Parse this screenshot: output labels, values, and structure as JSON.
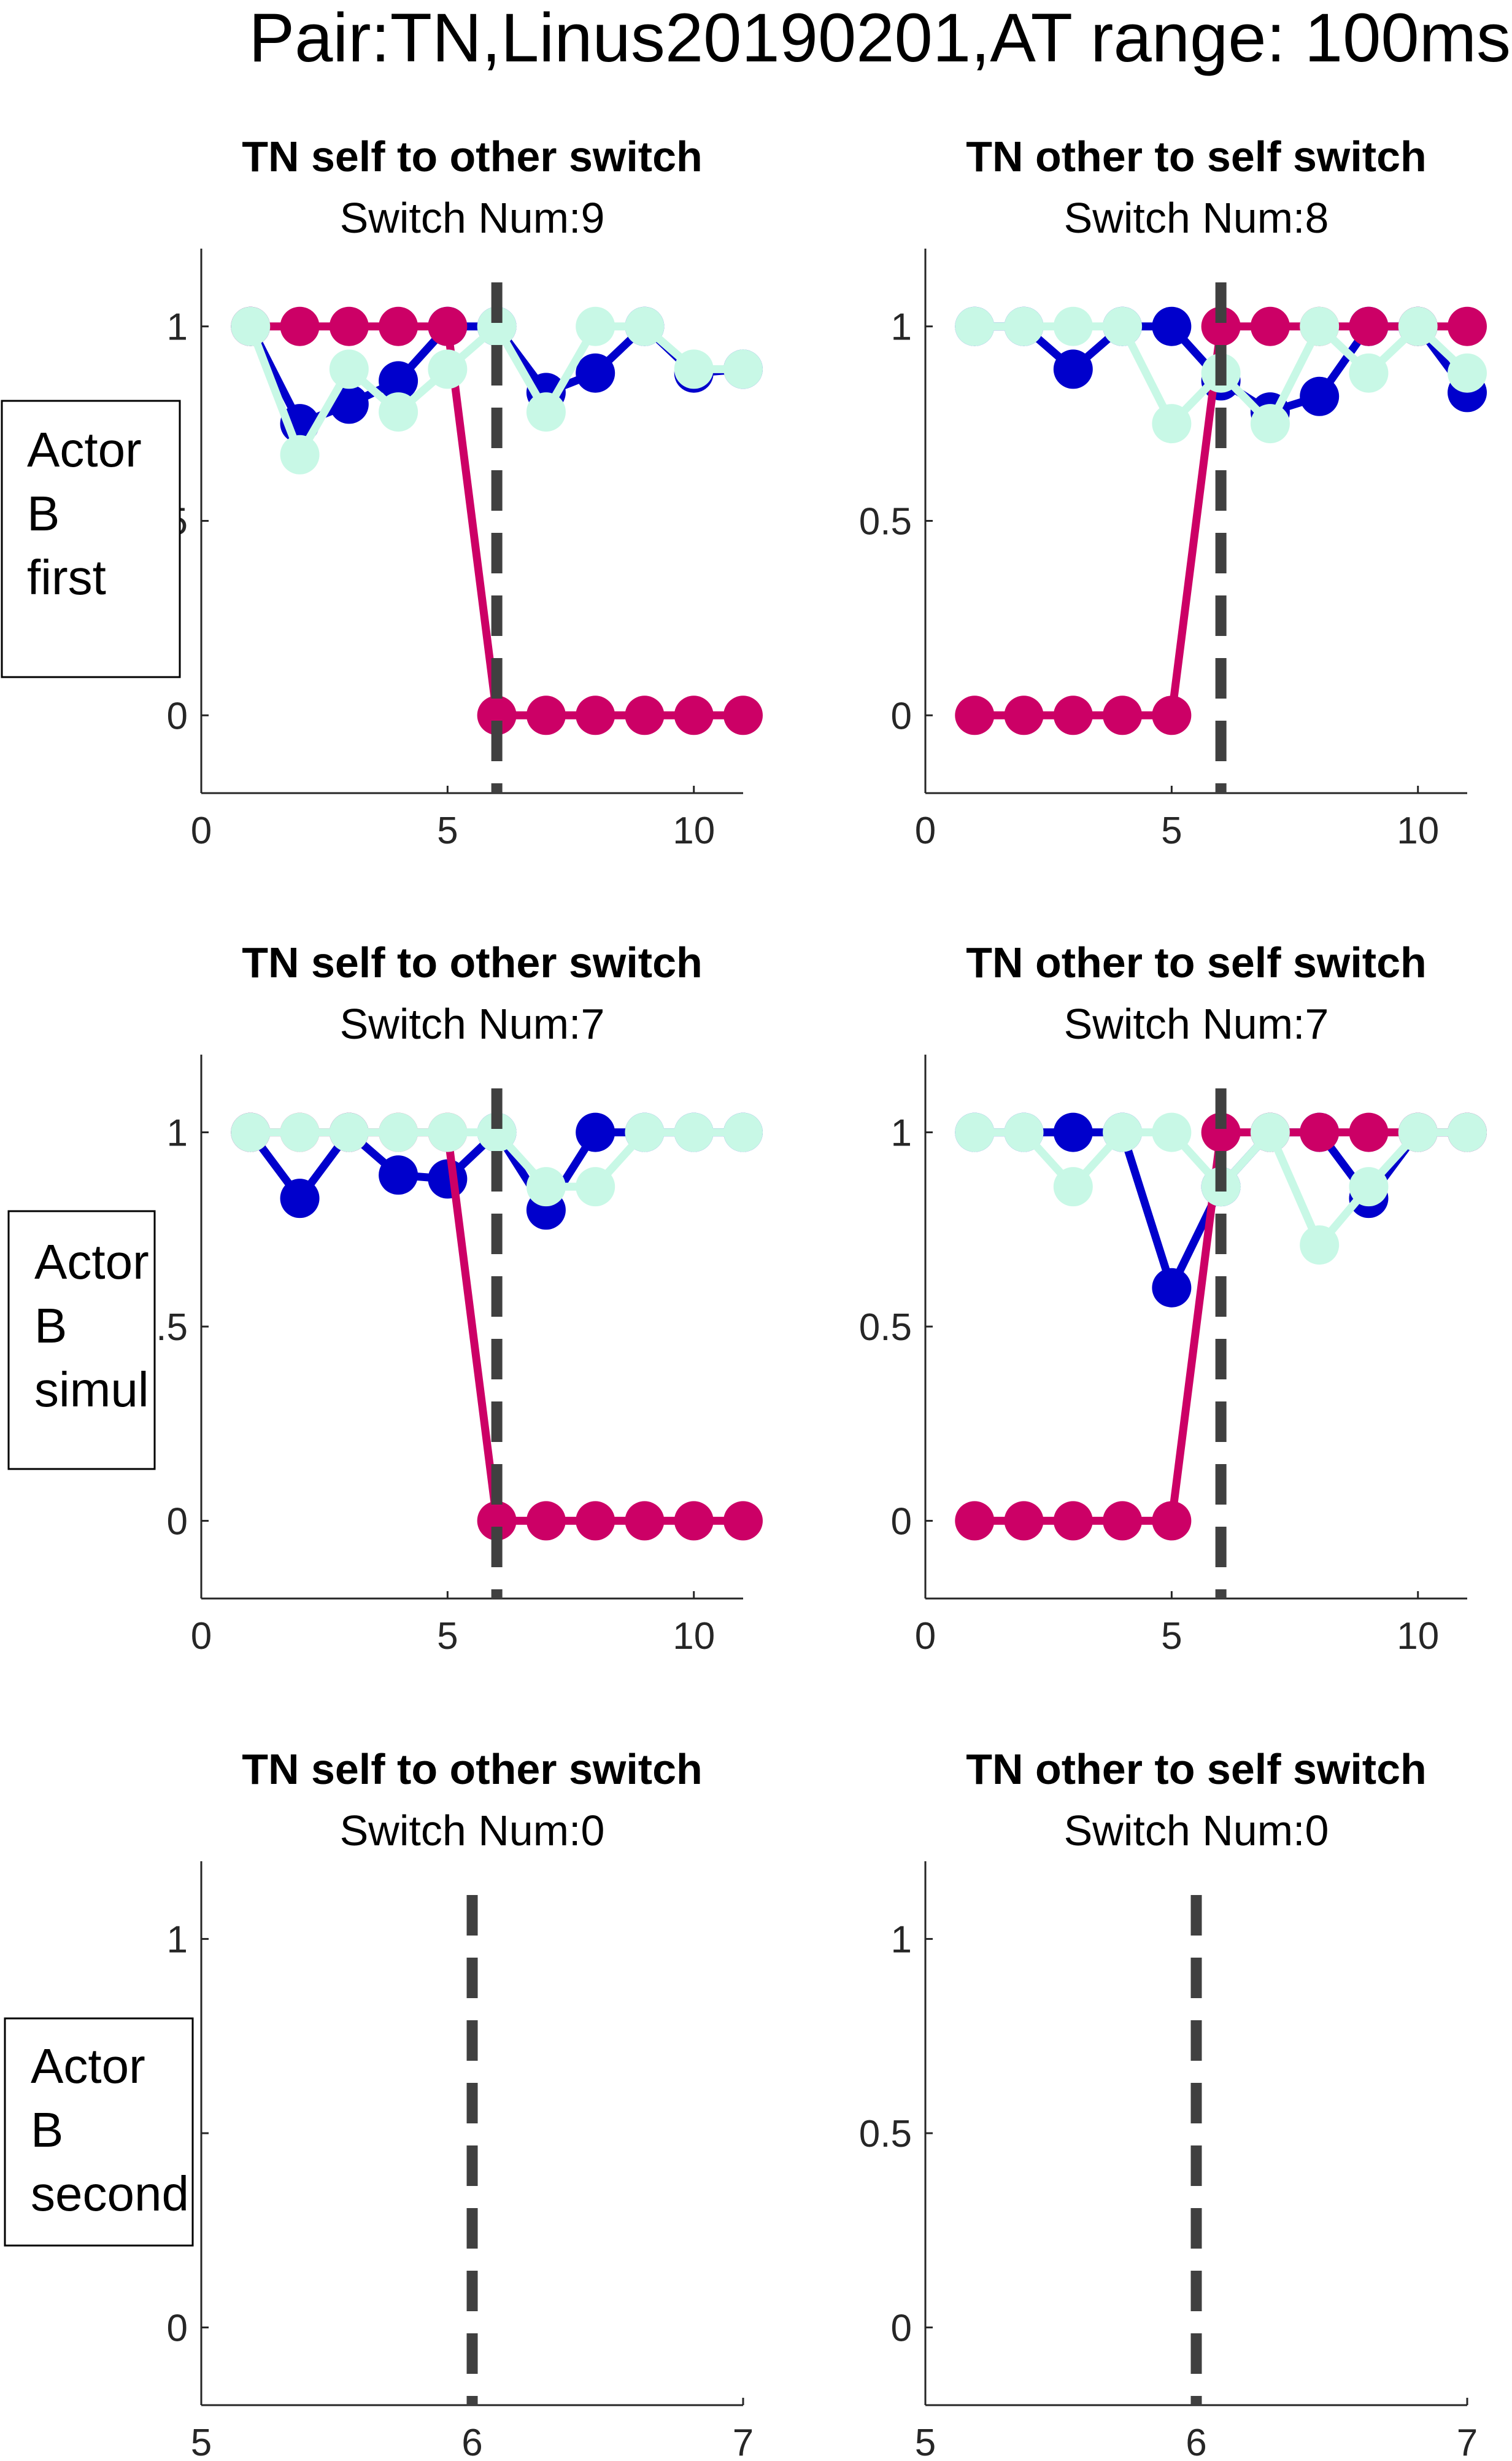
{
  "title": "Pair:TN,Linus20190201,AT range: 100ms",
  "colors": {
    "series_a": "#0000CC",
    "series_b": "#CC0066",
    "series_c": "#C8F8E6",
    "switch_line": "#404040"
  },
  "chart_data": [
    {
      "type": "line",
      "title": "TN self to other switch",
      "subtitle": "Switch Num:9",
      "row_label": [
        "Actor",
        "B",
        "first"
      ],
      "xlim": [
        0,
        11
      ],
      "ylim": [
        -0.2,
        1.2
      ],
      "xticks": [
        "0",
        "5",
        "10"
      ],
      "yticks": [
        "0",
        "0.5",
        "1"
      ],
      "switch_x": 6,
      "x": [
        1,
        2,
        3,
        4,
        5,
        6,
        7,
        8,
        9,
        10,
        11
      ],
      "series": [
        {
          "values": [
            1,
            0.75,
            0.8,
            0.86,
            1,
            1,
            0.83,
            0.88,
            1,
            0.88,
            0.89
          ],
          "color": "#0000CC"
        },
        {
          "values": [
            1,
            1,
            1,
            1,
            1,
            0,
            0,
            0,
            0,
            0,
            0
          ],
          "color": "#CC0066"
        },
        {
          "values": [
            1,
            0.67,
            0.89,
            0.78,
            0.89,
            1,
            0.78,
            1,
            1,
            0.89,
            0.89
          ],
          "color": "#C8F8E6"
        }
      ]
    },
    {
      "type": "line",
      "title": "TN other to self switch",
      "subtitle": "Switch Num:8",
      "xlim": [
        0,
        11
      ],
      "ylim": [
        -0.2,
        1.2
      ],
      "xticks": [
        "0",
        "5",
        "10"
      ],
      "yticks": [
        "0",
        "0.5",
        "1"
      ],
      "switch_x": 6,
      "x": [
        1,
        2,
        3,
        4,
        5,
        6,
        7,
        8,
        9,
        10,
        11
      ],
      "series": [
        {
          "values": [
            1,
            1,
            0.89,
            1,
            1,
            0.86,
            0.78,
            0.82,
            1,
            1,
            0.83
          ],
          "color": "#0000CC"
        },
        {
          "values": [
            0,
            0,
            0,
            0,
            0,
            1,
            1,
            1,
            1,
            1,
            1
          ],
          "color": "#CC0066"
        },
        {
          "values": [
            1,
            1,
            1,
            1,
            0.75,
            0.88,
            0.75,
            1,
            0.88,
            1,
            0.88
          ],
          "color": "#C8F8E6"
        }
      ]
    },
    {
      "type": "line",
      "title": "TN self to other switch",
      "subtitle": "Switch Num:7",
      "row_label": [
        "Actor",
        "B",
        "simul"
      ],
      "xlim": [
        0,
        11
      ],
      "ylim": [
        -0.2,
        1.2
      ],
      "xticks": [
        "0",
        "5",
        "10"
      ],
      "yticks": [
        "0",
        "0.5",
        "1"
      ],
      "switch_x": 6,
      "x": [
        1,
        2,
        3,
        4,
        5,
        6,
        7,
        8,
        9,
        10,
        11
      ],
      "series": [
        {
          "values": [
            1,
            0.83,
            1,
            0.89,
            0.88,
            1,
            0.8,
            1,
            1,
            1,
            1
          ],
          "color": "#0000CC"
        },
        {
          "values": [
            1,
            1,
            1,
            1,
            1,
            0,
            0,
            0,
            0,
            0,
            0
          ],
          "color": "#CC0066"
        },
        {
          "values": [
            1,
            1,
            1,
            1,
            1,
            1,
            0.86,
            0.86,
            1,
            1,
            1
          ],
          "color": "#C8F8E6"
        }
      ]
    },
    {
      "type": "line",
      "title": "TN other to self switch",
      "subtitle": "Switch Num:7",
      "xlim": [
        0,
        11
      ],
      "ylim": [
        -0.2,
        1.2
      ],
      "xticks": [
        "0",
        "5",
        "10"
      ],
      "yticks": [
        "0",
        "0.5",
        "1"
      ],
      "switch_x": 6,
      "x": [
        1,
        2,
        3,
        4,
        5,
        6,
        7,
        8,
        9,
        10,
        11
      ],
      "series": [
        {
          "values": [
            1,
            1,
            1,
            1,
            0.6,
            0.86,
            1,
            1,
            0.83,
            1,
            1
          ],
          "color": "#0000CC"
        },
        {
          "values": [
            0,
            0,
            0,
            0,
            0,
            1,
            1,
            1,
            1,
            1,
            1
          ],
          "color": "#CC0066"
        },
        {
          "values": [
            1,
            1,
            0.86,
            1,
            1,
            0.86,
            1,
            0.71,
            0.86,
            1,
            1
          ],
          "color": "#C8F8E6"
        }
      ]
    },
    {
      "type": "line",
      "title": "TN self to other switch",
      "subtitle": "Switch Num:0",
      "row_label": [
        "Actor",
        "B",
        "second"
      ],
      "xlim": [
        5,
        7
      ],
      "ylim": [
        -0.2,
        1.2
      ],
      "xticks": [
        "5",
        "6",
        "7"
      ],
      "yticks": [
        "0",
        "0.5",
        "1"
      ],
      "switch_x": 6,
      "x": [],
      "series": []
    },
    {
      "type": "line",
      "title": "TN other to self switch",
      "subtitle": "Switch Num:0",
      "xlim": [
        5,
        7
      ],
      "ylim": [
        -0.2,
        1.2
      ],
      "xticks": [
        "5",
        "6",
        "7"
      ],
      "yticks": [
        "0",
        "0.5",
        "1"
      ],
      "switch_x": 6,
      "x": [],
      "series": []
    }
  ]
}
